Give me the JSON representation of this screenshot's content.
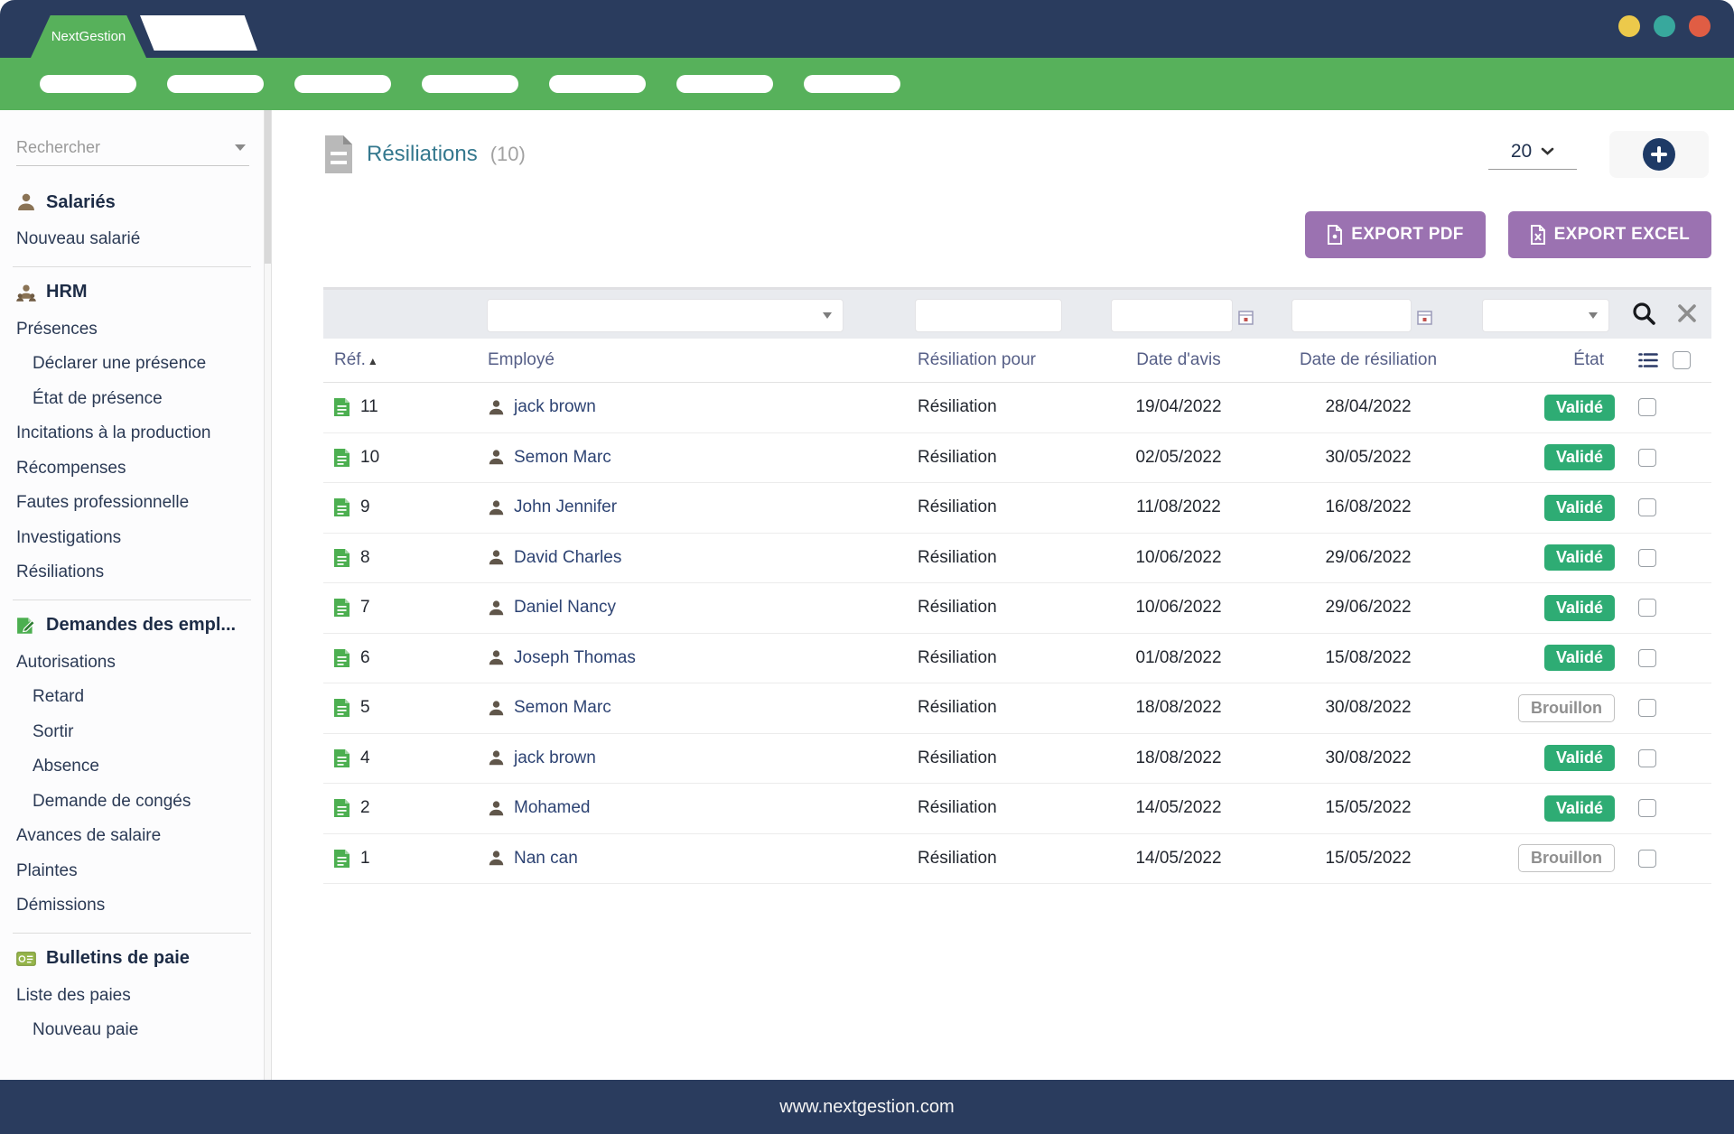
{
  "window": {
    "brand": "NextGestion",
    "dots": [
      "#ecc94b",
      "#38a89d",
      "#e05d44"
    ],
    "nav_pill_count": 7,
    "footer_url": "www.nextgestion.com"
  },
  "colors": {
    "navy": "#2a3c5e",
    "green": "#57b15b",
    "badge_valid_green": "#2eac74",
    "export_purple": "#9b72b1",
    "title_teal": "#34788e"
  },
  "sidebar": {
    "search_placeholder": "Rechercher",
    "sections": [
      {
        "icon": "person-icon",
        "title": "Salariés",
        "items": [
          {
            "label": "Nouveau salarié",
            "indent": 0
          }
        ]
      },
      {
        "icon": "people-icon",
        "title": "HRM",
        "items": [
          {
            "label": "Présences",
            "indent": 0
          },
          {
            "label": "Déclarer une présence",
            "indent": 1
          },
          {
            "label": "État de présence",
            "indent": 1
          },
          {
            "label": "Incitations à la production",
            "indent": 0
          },
          {
            "label": "Récompenses",
            "indent": 0
          },
          {
            "label": "Fautes professionnelle",
            "indent": 0
          },
          {
            "label": "Investigations",
            "indent": 0
          },
          {
            "label": "Résiliations",
            "indent": 0
          }
        ]
      },
      {
        "icon": "request-icon",
        "title": "Demandes des empl...",
        "items": [
          {
            "label": "Autorisations",
            "indent": 0
          },
          {
            "label": "Retard",
            "indent": 1
          },
          {
            "label": "Sortir",
            "indent": 1
          },
          {
            "label": "Absence",
            "indent": 1
          },
          {
            "label": "Demande de congés",
            "indent": 1
          },
          {
            "label": "Avances de salaire",
            "indent": 0
          },
          {
            "label": "Plaintes",
            "indent": 0
          },
          {
            "label": "Démissions",
            "indent": 0
          }
        ]
      },
      {
        "icon": "payslip-icon",
        "title": "Bulletins de paie",
        "items": [
          {
            "label": "Liste des paies",
            "indent": 0
          },
          {
            "label": "Nouveau paie",
            "indent": 1
          }
        ]
      }
    ]
  },
  "main": {
    "title": "Résiliations",
    "count": "(10)",
    "page_size": "20",
    "export_pdf_label": "EXPORT PDF",
    "export_excel_label": "EXPORT EXCEL",
    "table": {
      "headers": {
        "ref": "Réf.",
        "employee": "Employé",
        "reason": "Résiliation pour",
        "notice_date": "Date d'avis",
        "termination_date": "Date de résiliation",
        "status": "État"
      },
      "rows": [
        {
          "ref": "11",
          "employee": "jack brown",
          "reason": "Résiliation",
          "notice_date": "19/04/2022",
          "termination_date": "28/04/2022",
          "status": "Validé",
          "status_type": "valid"
        },
        {
          "ref": "10",
          "employee": "Semon Marc",
          "reason": "Résiliation",
          "notice_date": "02/05/2022",
          "termination_date": "30/05/2022",
          "status": "Validé",
          "status_type": "valid"
        },
        {
          "ref": "9",
          "employee": "John Jennifer",
          "reason": "Résiliation",
          "notice_date": "11/08/2022",
          "termination_date": "16/08/2022",
          "status": "Validé",
          "status_type": "valid"
        },
        {
          "ref": "8",
          "employee": "David Charles",
          "reason": "Résiliation",
          "notice_date": "10/06/2022",
          "termination_date": "29/06/2022",
          "status": "Validé",
          "status_type": "valid"
        },
        {
          "ref": "7",
          "employee": "Daniel Nancy",
          "reason": "Résiliation",
          "notice_date": "10/06/2022",
          "termination_date": "29/06/2022",
          "status": "Validé",
          "status_type": "valid"
        },
        {
          "ref": "6",
          "employee": "Joseph Thomas",
          "reason": "Résiliation",
          "notice_date": "01/08/2022",
          "termination_date": "15/08/2022",
          "status": "Validé",
          "status_type": "valid"
        },
        {
          "ref": "5",
          "employee": "Semon Marc",
          "reason": "Résiliation",
          "notice_date": "18/08/2022",
          "termination_date": "30/08/2022",
          "status": "Brouillon",
          "status_type": "draft"
        },
        {
          "ref": "4",
          "employee": "jack brown",
          "reason": "Résiliation",
          "notice_date": "18/08/2022",
          "termination_date": "30/08/2022",
          "status": "Validé",
          "status_type": "valid"
        },
        {
          "ref": "2",
          "employee": "Mohamed",
          "reason": "Résiliation",
          "notice_date": "14/05/2022",
          "termination_date": "15/05/2022",
          "status": "Validé",
          "status_type": "valid"
        },
        {
          "ref": "1",
          "employee": "Nan can",
          "reason": "Résiliation",
          "notice_date": "14/05/2022",
          "termination_date": "15/05/2022",
          "status": "Brouillon",
          "status_type": "draft"
        }
      ]
    }
  }
}
